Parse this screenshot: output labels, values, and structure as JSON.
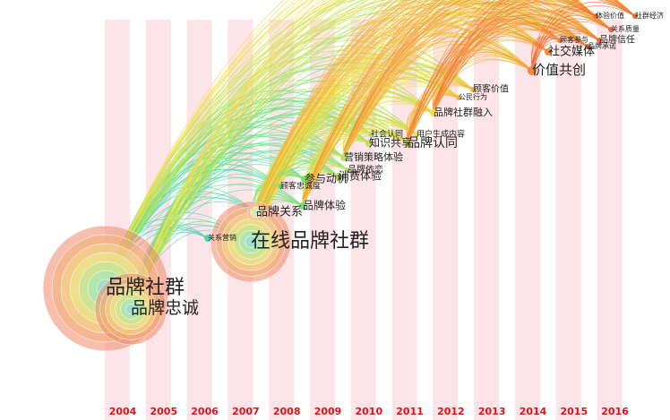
{
  "years": [
    "2004",
    "2005",
    "2006",
    "2007",
    "2008",
    "2009",
    "2010",
    "2011",
    "2012",
    "2013",
    "2014",
    "2015",
    "2016"
  ],
  "nodes": [
    {
      "label": "品牌社群"
    },
    {
      "label": "品牌忠诚"
    },
    {
      "label": "关系营销"
    },
    {
      "label": "在线品牌社群"
    },
    {
      "label": "品牌关系"
    },
    {
      "label": "品牌体验"
    },
    {
      "label": "顾客忠诚度"
    },
    {
      "label": "参与动机"
    },
    {
      "label": "消费体验"
    },
    {
      "label": "品牌依恋"
    },
    {
      "label": "营销策略体验"
    },
    {
      "label": "社会认同"
    },
    {
      "label": "知识共享"
    },
    {
      "label": "品牌认同"
    },
    {
      "label": "用户生成内容"
    },
    {
      "label": "品牌社群融入"
    },
    {
      "label": "公民行为"
    },
    {
      "label": "顾客价值"
    },
    {
      "label": "价值共创"
    },
    {
      "label": "社交媒体"
    },
    {
      "label": "顾客参与"
    },
    {
      "label": "品牌信任"
    },
    {
      "label": "品牌承诺"
    },
    {
      "label": "关系质量"
    },
    {
      "label": "体验价值"
    },
    {
      "label": "社群经济"
    }
  ]
}
